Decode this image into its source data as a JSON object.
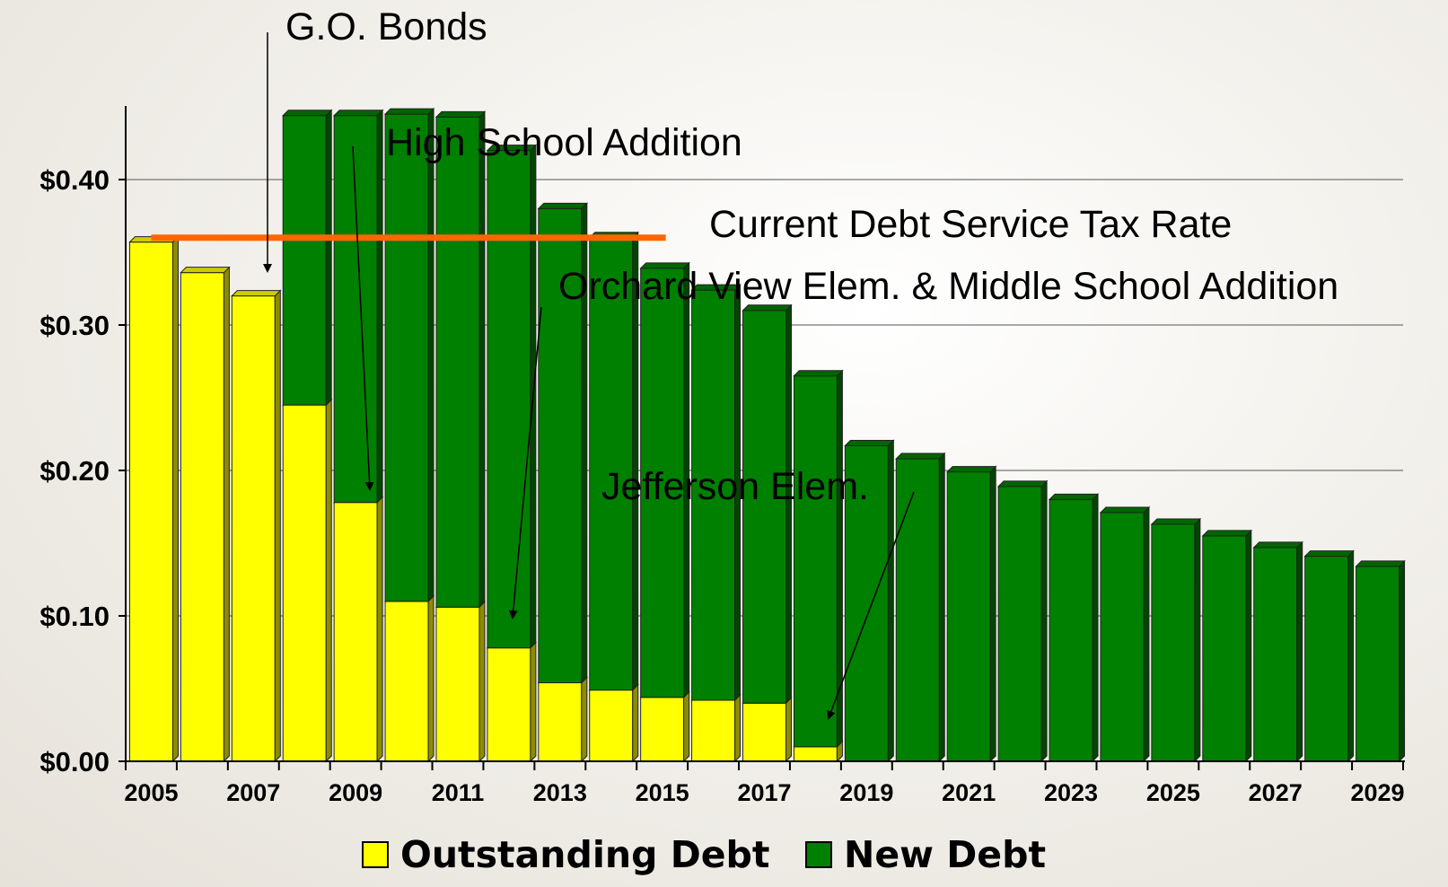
{
  "chart_data": {
    "type": "bar",
    "stacked": true,
    "categories": [
      "2005",
      "2006",
      "2007",
      "2008",
      "2009",
      "2010",
      "2011",
      "2012",
      "2013",
      "2014",
      "2015",
      "2016",
      "2017",
      "2018",
      "2019",
      "2020",
      "2021",
      "2022",
      "2023",
      "2024",
      "2025",
      "2026",
      "2027",
      "2028",
      "2029"
    ],
    "x_tick_labels": [
      "2005",
      "2007",
      "2009",
      "2011",
      "2013",
      "2015",
      "2017",
      "2019",
      "2021",
      "2023",
      "2025",
      "2027",
      "2029"
    ],
    "series": [
      {
        "name": "Outstanding Debt",
        "color": "#ffff00",
        "values": [
          0.357,
          0.336,
          0.32,
          0.245,
          0.178,
          0.11,
          0.106,
          0.078,
          0.054,
          0.049,
          0.044,
          0.042,
          0.04,
          0.01,
          0,
          0,
          0,
          0,
          0,
          0,
          0,
          0,
          0,
          0,
          0
        ]
      },
      {
        "name": "New Debt",
        "color": "#008000",
        "values": [
          0,
          0,
          0,
          0.199,
          0.266,
          0.335,
          0.337,
          0.342,
          0.326,
          0.311,
          0.295,
          0.282,
          0.27,
          0.255,
          0.217,
          0.208,
          0.199,
          0.189,
          0.18,
          0.171,
          0.163,
          0.155,
          0.147,
          0.141,
          0.134
        ]
      }
    ],
    "ylim": [
      0,
      0.45
    ],
    "y_ticks": [
      0,
      0.1,
      0.2,
      0.3,
      0.4
    ],
    "y_tick_labels": [
      "$0.00",
      "$0.10",
      "$0.20",
      "$0.30",
      "$0.40"
    ],
    "grid": true,
    "legend_position": "bottom",
    "reference_line": {
      "label": "Current Debt Service Tax Rate",
      "value": 0.36,
      "x_start": "2005",
      "x_end": "2015",
      "color": "#ff6600"
    },
    "annotations": [
      {
        "text": "G.O. Bonds",
        "points_to": "2007"
      },
      {
        "text": "High School Addition",
        "points_to": "2009"
      },
      {
        "text": "Orchard View Elem. & Middle School Addition",
        "points_to": "2012"
      },
      {
        "text": "Jefferson Elem.",
        "points_to": "2018"
      }
    ]
  }
}
